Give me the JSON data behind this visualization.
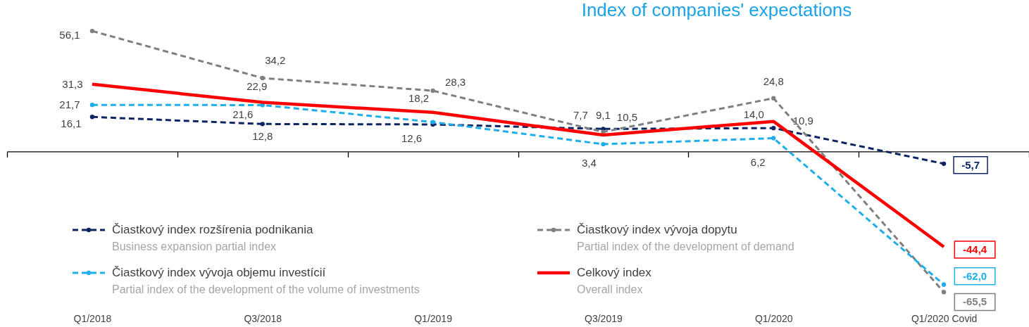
{
  "chart_data": {
    "type": "line",
    "title": "Index of companies' expectations",
    "categories": [
      "Q1/2018",
      "Q3/2018",
      "Q1/2019",
      "Q3/2019",
      "Q1/2020",
      "Q1/2020 Covid"
    ],
    "series": [
      {
        "name": "Čiastkový index rozšírenia podnikania\nBusiness expansion partial index",
        "color": "#0c2461",
        "values": [
          16.1,
          12.8,
          12.6,
          10.5,
          10.9,
          -5.7
        ],
        "value_labels": [
          "16,1",
          "12,8",
          "12,6",
          "10,5",
          "10,9",
          "-5,7"
        ],
        "line_style": "dashed",
        "marker": "circle"
      },
      {
        "name": "Čiastkový index vývoja dopytu\nPartial index of the development of demand",
        "color": "#7f7f7f",
        "values": [
          56.1,
          34.2,
          28.3,
          9.1,
          24.8,
          -65.5
        ],
        "value_labels": [
          "56,1",
          "34,2",
          "28,3",
          "9,1",
          "24,8",
          "-65,5"
        ],
        "line_style": "dashed",
        "marker": "circle"
      },
      {
        "name": "Čiastkový index vývoja objemu investícií\nPartial index of the development of the volume of investments",
        "color": "#1eaeea",
        "values": [
          21.7,
          21.6,
          13.7,
          3.4,
          6.2,
          -62.0
        ],
        "value_labels": [
          "21,7",
          "21,6",
          null,
          "3,4",
          "6,2",
          "-62,0"
        ],
        "line_style": "dashed",
        "marker": "circle"
      },
      {
        "name": "Celkový index\nOverall index",
        "color": "#ff0000",
        "values": [
          31.3,
          22.9,
          18.2,
          7.7,
          14.0,
          -44.4
        ],
        "value_labels": [
          "31,3",
          "22,9",
          "18,2",
          "7,7",
          "14,0",
          "-44,4"
        ],
        "line_style": "solid",
        "marker": "none"
      }
    ],
    "legend": "bottom",
    "tick_labels": "x"
  }
}
